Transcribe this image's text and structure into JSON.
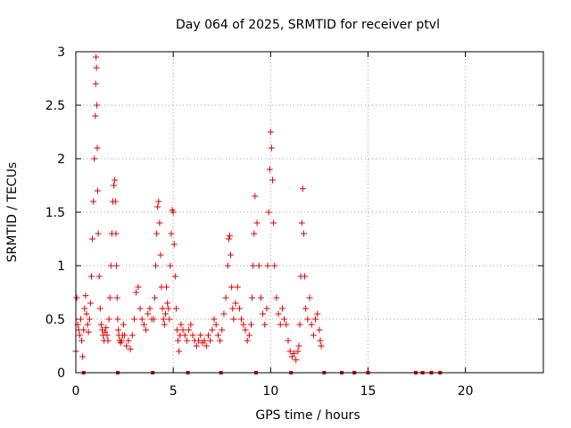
{
  "chart_data": {
    "type": "scatter",
    "title": "Day 064 of 2025, SRMTID for receiver ptvl",
    "xlabel": "GPS time / hours",
    "ylabel": "SRMTID / TECUs",
    "xlim": [
      0,
      24
    ],
    "ylim": [
      0,
      3
    ],
    "xticks": [
      0,
      5,
      10,
      15,
      20
    ],
    "yticks": [
      0,
      0.5,
      1,
      1.5,
      2,
      2.5,
      3
    ],
    "ytick_labels": [
      "0",
      "0.5",
      "1",
      "1.5",
      "2",
      "2.5",
      "3"
    ],
    "grid": true,
    "marker": "+",
    "color": "#e00000",
    "series": [
      {
        "name": "SRMTID",
        "x": [
          0.0,
          0.05,
          0.1,
          0.15,
          0.2,
          0.25,
          0.3,
          0.35,
          0.4,
          0.45,
          0.5,
          0.55,
          0.6,
          0.65,
          0.7,
          0.75,
          0.8,
          0.85,
          0.9,
          0.95,
          1.0,
          1.02,
          1.04,
          1.06,
          1.08,
          1.1,
          1.12,
          1.15,
          1.2,
          1.25,
          1.3,
          1.35,
          1.4,
          1.45,
          1.5,
          1.55,
          1.6,
          1.65,
          1.7,
          1.75,
          1.8,
          1.85,
          1.9,
          1.95,
          2.0,
          2.03,
          2.06,
          2.09,
          2.12,
          2.15,
          2.18,
          2.21,
          2.25,
          2.3,
          2.35,
          2.4,
          2.45,
          2.5,
          2.6,
          2.7,
          2.8,
          2.9,
          3.0,
          3.1,
          3.2,
          3.3,
          3.4,
          3.5,
          3.6,
          3.7,
          3.8,
          3.9,
          4.0,
          4.05,
          4.1,
          4.15,
          4.2,
          4.25,
          4.3,
          4.35,
          4.4,
          4.45,
          4.5,
          4.55,
          4.6,
          4.65,
          4.7,
          4.75,
          4.8,
          4.85,
          4.9,
          4.95,
          5.0,
          5.05,
          5.1,
          5.15,
          5.2,
          5.25,
          5.3,
          5.35,
          5.4,
          5.5,
          5.6,
          5.7,
          5.8,
          5.9,
          6.0,
          6.1,
          6.2,
          6.3,
          6.4,
          6.5,
          6.6,
          6.7,
          6.8,
          6.9,
          7.0,
          7.1,
          7.2,
          7.3,
          7.4,
          7.5,
          7.6,
          7.7,
          7.8,
          7.85,
          7.9,
          7.95,
          8.0,
          8.05,
          8.1,
          8.2,
          8.3,
          8.4,
          8.5,
          8.6,
          8.7,
          8.8,
          8.9,
          9.0,
          9.05,
          9.1,
          9.15,
          9.2,
          9.3,
          9.4,
          9.5,
          9.6,
          9.7,
          9.8,
          9.85,
          9.9,
          9.95,
          10.0,
          10.05,
          10.1,
          10.15,
          10.2,
          10.3,
          10.4,
          10.5,
          10.6,
          10.7,
          10.8,
          10.9,
          11.0,
          11.1,
          11.2,
          11.3,
          11.4,
          11.45,
          11.5,
          11.55,
          11.6,
          11.65,
          11.7,
          11.75,
          11.8,
          11.9,
          12.0,
          12.1,
          12.2,
          12.3,
          12.4,
          12.5,
          12.55,
          12.6
        ],
        "y": [
          0.2,
          0.7,
          0.45,
          0.4,
          0.35,
          0.5,
          0.3,
          0.15,
          0.4,
          0.6,
          0.72,
          0.55,
          0.45,
          0.38,
          0.5,
          0.65,
          0.9,
          1.25,
          1.6,
          2.0,
          2.4,
          2.7,
          2.95,
          2.85,
          2.5,
          2.1,
          1.7,
          1.3,
          0.9,
          0.6,
          0.45,
          0.4,
          0.35,
          0.3,
          0.38,
          0.42,
          0.35,
          0.3,
          0.5,
          0.7,
          1.0,
          1.3,
          1.6,
          1.75,
          1.8,
          1.6,
          1.3,
          1.0,
          0.7,
          0.5,
          0.4,
          0.35,
          0.3,
          0.28,
          0.3,
          0.35,
          0.45,
          0.35,
          0.25,
          0.3,
          0.22,
          0.35,
          0.5,
          0.75,
          0.8,
          0.6,
          0.5,
          0.45,
          0.4,
          0.55,
          0.6,
          0.5,
          0.5,
          0.7,
          1.0,
          1.3,
          1.55,
          1.6,
          1.4,
          1.1,
          0.8,
          0.6,
          0.5,
          0.45,
          0.55,
          0.8,
          0.65,
          0.6,
          0.5,
          1.0,
          1.3,
          1.52,
          1.5,
          1.2,
          0.9,
          0.6,
          0.4,
          0.3,
          0.2,
          0.35,
          0.45,
          0.4,
          0.35,
          0.3,
          0.4,
          0.45,
          0.35,
          0.3,
          0.25,
          0.3,
          0.35,
          0.28,
          0.3,
          0.25,
          0.35,
          0.3,
          0.4,
          0.5,
          0.45,
          0.35,
          0.3,
          0.4,
          0.55,
          0.7,
          1.0,
          1.25,
          1.28,
          1.1,
          0.8,
          0.6,
          0.5,
          0.65,
          0.8,
          0.6,
          0.5,
          0.45,
          0.4,
          0.3,
          0.35,
          0.45,
          0.7,
          1.0,
          1.3,
          1.65,
          1.4,
          1.0,
          0.7,
          0.55,
          0.45,
          0.6,
          1.0,
          1.5,
          1.9,
          2.25,
          2.1,
          1.8,
          1.4,
          1.0,
          0.7,
          0.55,
          0.45,
          0.6,
          0.5,
          0.45,
          0.3,
          0.2,
          0.15,
          0.18,
          0.12,
          0.2,
          0.25,
          0.45,
          0.9,
          1.4,
          1.72,
          1.3,
          0.9,
          0.6,
          0.5,
          0.7,
          0.45,
          0.35,
          0.5,
          0.55,
          0.4,
          0.3,
          0.25
        ]
      }
    ],
    "gap_markers_x": [
      0.4,
      2.15,
      3.95,
      5.75,
      7.45,
      9.25,
      11.05,
      12.75,
      13.65,
      14.3,
      15.0,
      17.45,
      17.8,
      18.25,
      18.7
    ]
  }
}
